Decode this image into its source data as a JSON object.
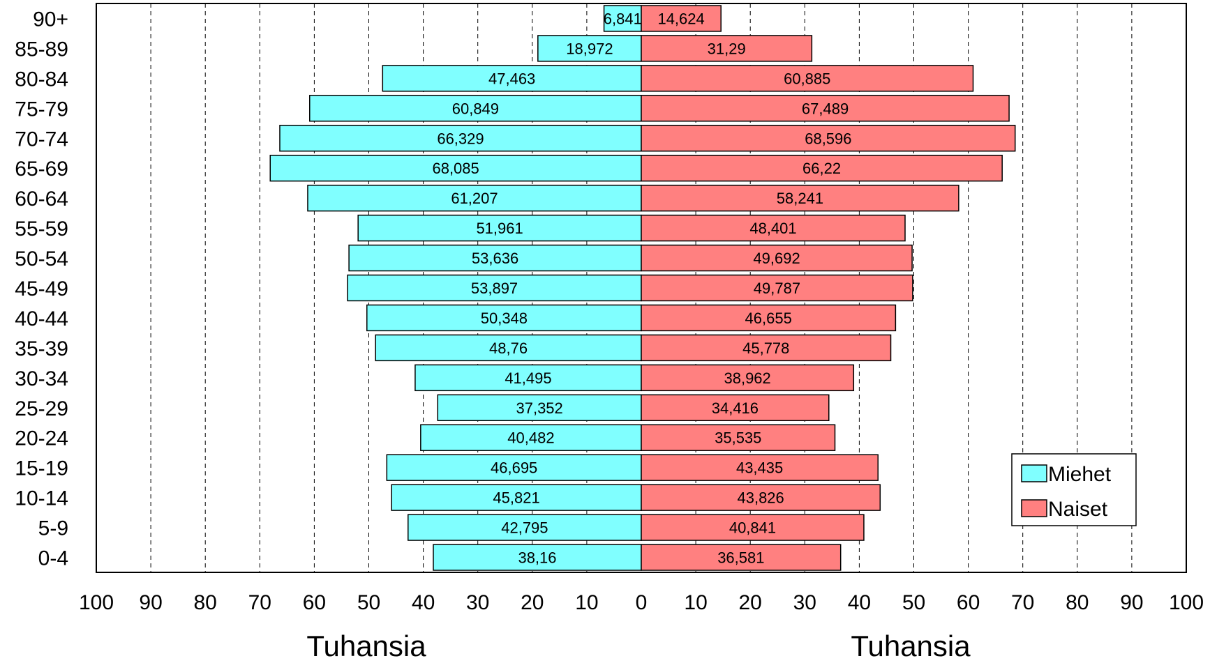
{
  "chart_data": {
    "type": "bar",
    "orientation": "horizontal",
    "layout": "population-pyramid",
    "categories": [
      "90+",
      "85-89",
      "80-84",
      "75-79",
      "70-74",
      "65-69",
      "60-64",
      "55-59",
      "50-54",
      "45-49",
      "40-44",
      "35-39",
      "30-34",
      "25-29",
      "20-24",
      "15-19",
      "10-14",
      "5-9",
      "0-4"
    ],
    "series": [
      {
        "name": "Miehet",
        "side": "left",
        "color": "#80FFFF",
        "values": [
          6.841,
          18.972,
          47.463,
          60.849,
          66.329,
          68.085,
          61.207,
          51.961,
          53.636,
          53.897,
          50.348,
          48.76,
          41.495,
          37.352,
          40.482,
          46.695,
          45.821,
          42.795,
          38.16
        ],
        "labels": [
          "6,841",
          "18,972",
          "47,463",
          "60,849",
          "66,329",
          "68,085",
          "61,207",
          "51,961",
          "53,636",
          "53,897",
          "50,348",
          "48,76",
          "41,495",
          "37,352",
          "40,482",
          "46,695",
          "45,821",
          "42,795",
          "38,16"
        ]
      },
      {
        "name": "Naiset",
        "side": "right",
        "color": "#FF8080",
        "values": [
          14.624,
          31.29,
          60.885,
          67.489,
          68.596,
          66.22,
          58.241,
          48.401,
          49.692,
          49.787,
          46.655,
          45.778,
          38.962,
          34.416,
          35.535,
          43.435,
          43.826,
          40.841,
          36.581
        ],
        "labels": [
          "14,624",
          "31,29",
          "60,885",
          "67,489",
          "68,596",
          "66,22",
          "58,241",
          "48,401",
          "49,692",
          "49,787",
          "46,655",
          "45,778",
          "38,962",
          "34,416",
          "35,535",
          "43,435",
          "43,826",
          "40,841",
          "36,581"
        ]
      }
    ],
    "x_ticks": [
      "100",
      "90",
      "80",
      "70",
      "60",
      "50",
      "40",
      "30",
      "20",
      "10",
      "0",
      "10",
      "20",
      "30",
      "40",
      "50",
      "60",
      "70",
      "80",
      "90",
      "100"
    ],
    "xlim": [
      -100,
      100
    ],
    "xlabel_left": "Tuhansia",
    "xlabel_right": "Tuhansia",
    "grid": "vertical dashed",
    "legend_position": "bottom-right"
  }
}
